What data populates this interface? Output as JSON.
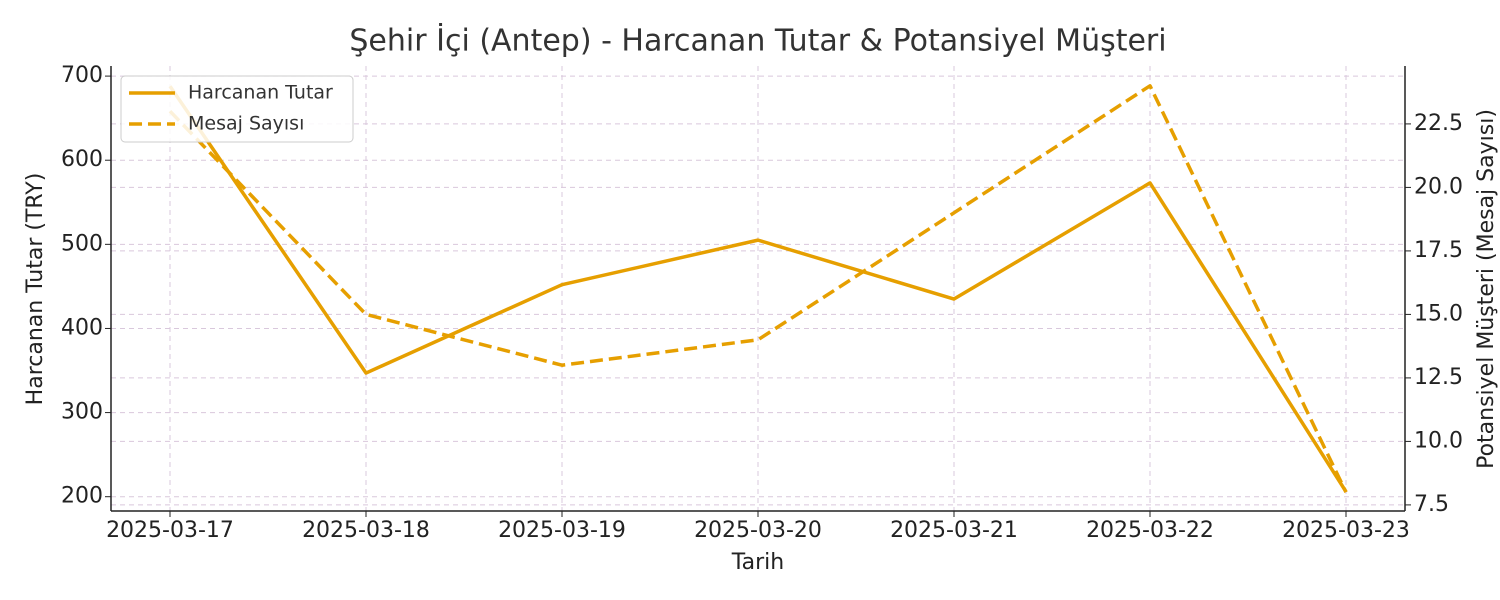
{
  "chart_data": {
    "type": "line",
    "title": "Şehir İçi (Antep) - Harcanan Tutar & Potansiyel Müşteri",
    "x_label": "Tarih",
    "y_label": "Harcanan Tutar (TRY)",
    "y2_label": "Potansiyel Müşteri (Mesaj Sayısı)",
    "categories": [
      "2025-03-17",
      "2025-03-18",
      "2025-03-19",
      "2025-03-20",
      "2025-03-21",
      "2025-03-22",
      "2025-03-23"
    ],
    "series": [
      {
        "name": "Harcanan Tutar",
        "color": "#e69f00",
        "dash": false,
        "values": [
          688,
          347,
          452,
          505,
          435,
          573,
          206
        ]
      },
      {
        "name": "Mesaj Sayısı",
        "color": "#e69f00",
        "dash": true,
        "axis": "y2",
        "values": [
          23,
          15,
          13,
          14,
          19,
          24,
          8
        ]
      }
    ],
    "ylim": [
      183,
      712
    ],
    "yticks": [
      200,
      300,
      400,
      500,
      600,
      700
    ],
    "y2lim": [
      7.26,
      24.78
    ],
    "y2ticks": [
      7.5,
      {
        "value": 10,
        "label": "10.0"
      },
      12.5,
      {
        "value": 15,
        "label": "15.0"
      },
      17.5,
      {
        "value": 20,
        "label": "20.0"
      },
      22.5
    ],
    "grid": true,
    "legend": "upper-left"
  }
}
